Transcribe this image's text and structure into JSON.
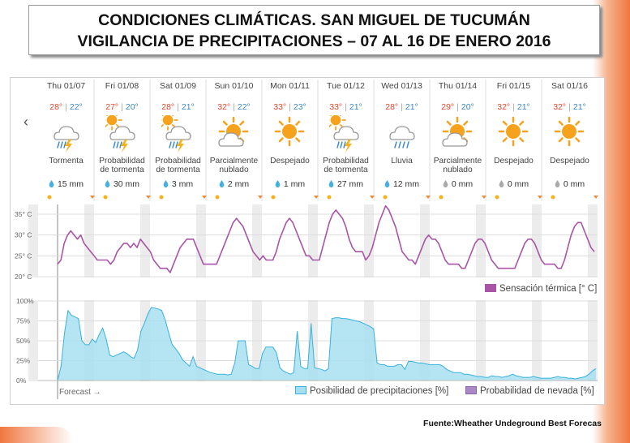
{
  "title": {
    "line1": "CONDICIONES  CLIMÁTICAS. SAN MIGUEL DE TUCUMÁN",
    "line2": "VIGILANCIA DE PRECIPITACIONES – 07 AL 16 DE ENERO 2016"
  },
  "source": "Fuente:Wheather Undeground Best Forecas",
  "colors": {
    "feels_line": "#a855a6",
    "precip_fill": "#a8dff0",
    "precip_line": "#38b2dc",
    "snow": "#a889c6",
    "hi": "#e0452b",
    "lo": "#3a86c6"
  },
  "days": [
    {
      "name": "Thu 01/07",
      "hi": "28°",
      "lo": "22°",
      "icon": "thunderstorm-icon",
      "condition": [
        "Tormenta"
      ],
      "precip": "15 mm"
    },
    {
      "name": "Fri 01/08",
      "hi": "27°",
      "lo": "20°",
      "icon": "sun-thunderstorm-icon",
      "condition": [
        "Probabilidad",
        "de tormenta"
      ],
      "precip": "30 mm"
    },
    {
      "name": "Sat 01/09",
      "hi": "28°",
      "lo": "21°",
      "icon": "sun-thunderstorm-icon",
      "condition": [
        "Probabilidad",
        "de tormenta"
      ],
      "precip": "3 mm"
    },
    {
      "name": "Sun 01/10",
      "hi": "32°",
      "lo": "22°",
      "icon": "partly-cloudy-icon",
      "condition": [
        "Parcialmente",
        "nublado"
      ],
      "precip": "2 mm"
    },
    {
      "name": "Mon 01/11",
      "hi": "33°",
      "lo": "23°",
      "icon": "sun-icon",
      "condition": [
        "Despejado"
      ],
      "precip": "1 mm"
    },
    {
      "name": "Tue 01/12",
      "hi": "33°",
      "lo": "21°",
      "icon": "sun-thunderstorm-icon",
      "condition": [
        "Probabilidad",
        "de tormenta"
      ],
      "precip": "27 mm"
    },
    {
      "name": "Wed 01/13",
      "hi": "28°",
      "lo": "21°",
      "icon": "rain-icon",
      "condition": [
        "Lluvia"
      ],
      "precip": "12 mm"
    },
    {
      "name": "Thu 01/14",
      "hi": "29°",
      "lo": "20°",
      "icon": "partly-cloudy-icon",
      "condition": [
        "Parcialmente",
        "nublado"
      ],
      "precip": "0 mm"
    },
    {
      "name": "Fri 01/15",
      "hi": "32°",
      "lo": "21°",
      "icon": "sun-icon",
      "condition": [
        "Despejado"
      ],
      "precip": "0 mm"
    },
    {
      "name": "Sat 01/16",
      "hi": "32°",
      "lo": "21°",
      "icon": "sun-icon",
      "condition": [
        "Despejado"
      ],
      "precip": "0 mm"
    }
  ],
  "chart_data": [
    {
      "type": "line",
      "ylabels": [
        "35° C",
        "30° C",
        "25° C",
        "20° C"
      ],
      "ylim": [
        20,
        35
      ],
      "legend": "Sensación térmica [° C]",
      "series": [
        {
          "name": "Sensación térmica [° C]",
          "values": [
            23,
            24,
            28,
            30,
            31,
            30,
            29,
            30,
            28,
            27,
            26,
            25,
            24,
            24,
            24,
            24,
            23,
            24,
            26,
            27,
            28,
            28,
            27,
            28,
            27,
            29,
            28,
            27,
            26,
            24,
            23,
            22,
            22,
            22,
            21,
            23,
            25,
            27,
            28,
            29,
            29,
            29,
            27,
            25,
            23,
            23,
            23,
            23,
            23,
            25,
            27,
            29,
            31,
            33,
            34,
            33,
            32,
            30,
            28,
            26,
            25,
            24,
            25,
            24,
            24,
            24,
            26,
            29,
            31,
            33,
            34,
            33,
            31,
            29,
            27,
            25,
            25,
            24,
            24,
            24,
            27,
            30,
            33,
            35,
            36,
            35,
            34,
            32,
            29,
            27,
            26,
            26,
            26,
            24,
            25,
            27,
            30,
            33,
            35,
            37,
            36,
            34,
            32,
            29,
            26,
            25,
            24,
            24,
            23,
            25,
            27,
            29,
            30,
            29,
            29,
            28,
            26,
            24,
            23,
            23,
            23,
            23,
            22,
            22,
            24,
            26,
            28,
            29,
            29,
            28,
            26,
            24,
            23,
            22,
            22,
            22,
            22,
            22,
            22,
            24,
            26,
            28,
            29,
            29,
            28,
            26,
            24,
            23,
            23,
            23,
            23,
            22,
            22,
            24,
            27,
            30,
            32,
            33,
            33,
            31,
            29,
            27,
            26
          ]
        }
      ]
    },
    {
      "type": "area",
      "ylabels": [
        "100%",
        "75%",
        "50%",
        "25%",
        "0%"
      ],
      "ylim": [
        0,
        100
      ],
      "legend": "Posibilidad de precipitaciones [%]",
      "legend2": "Probabilidad de nevada [%]",
      "series": [
        {
          "name": "Posibilidad de precipitaciones [%]",
          "values": [
            0,
            18,
            60,
            88,
            82,
            80,
            78,
            50,
            45,
            45,
            52,
            48,
            58,
            66,
            52,
            32,
            30,
            32,
            34,
            36,
            34,
            30,
            28,
            38,
            62,
            72,
            84,
            92,
            91,
            90,
            88,
            76,
            60,
            45,
            40,
            34,
            26,
            22,
            18,
            30,
            18,
            16,
            14,
            12,
            10,
            9,
            8,
            8,
            8,
            7,
            8,
            22,
            50,
            50,
            50,
            20,
            18,
            15,
            15,
            34,
            42,
            42,
            42,
            35,
            16,
            12,
            10,
            8,
            10,
            62,
            18,
            15,
            15,
            72,
            16,
            15,
            14,
            12,
            15,
            78,
            79,
            79,
            78,
            78,
            77,
            76,
            75,
            74,
            72,
            70,
            68,
            65,
            22,
            20,
            20,
            18,
            18,
            18,
            20,
            20,
            14,
            24,
            24,
            23,
            22,
            22,
            21,
            20,
            20,
            20,
            20,
            18,
            14,
            12,
            10,
            10,
            10,
            8,
            8,
            7,
            6,
            5,
            5,
            4,
            4,
            6,
            5,
            5,
            4,
            5,
            6,
            8,
            6,
            5,
            4,
            4,
            4,
            5,
            4,
            3,
            3,
            3,
            3,
            4,
            5,
            4,
            4,
            3,
            3,
            2,
            3,
            4,
            5,
            8,
            12,
            15
          ]
        }
      ]
    }
  ],
  "x_note": "Forecast →"
}
